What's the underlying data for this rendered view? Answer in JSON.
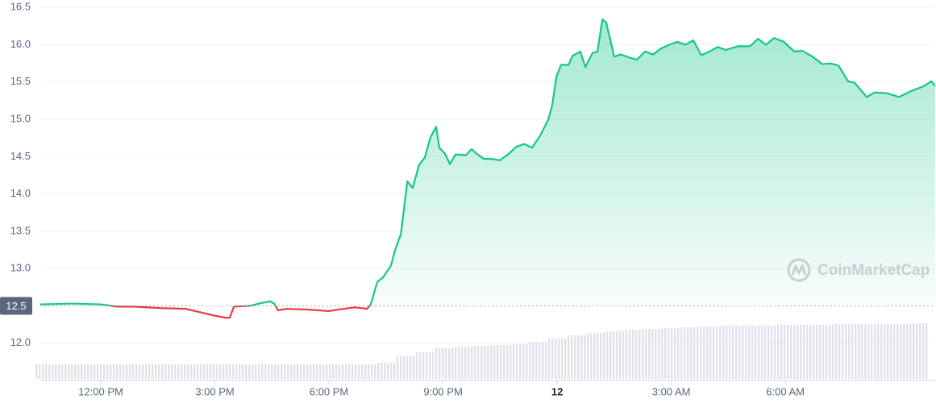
{
  "chart_data": {
    "type": "line",
    "watermark": "CoinMarketCap",
    "up_color": "#16c784",
    "down_color": "#ea3943",
    "grid": true,
    "xlim": [
      10.41,
      33.94
    ],
    "ylim": [
      11.5,
      16.6
    ],
    "y2lim": [
      0,
      100
    ],
    "xticks": [
      {
        "value": 12,
        "label": "12:00 PM"
      },
      {
        "value": 15,
        "label": "3:00 PM"
      },
      {
        "value": 18,
        "label": "6:00 PM"
      },
      {
        "value": 21,
        "label": "9:00 PM"
      },
      {
        "value": 24,
        "label": "12"
      },
      {
        "value": 27,
        "label": "3:00 AM"
      },
      {
        "value": 30,
        "label": "6:00 AM"
      }
    ],
    "yticks": [
      {
        "value": 12.0,
        "label": "12.0"
      },
      {
        "value": 13.0,
        "label": "13.0"
      },
      {
        "value": 13.5,
        "label": "13.5"
      },
      {
        "value": 14.0,
        "label": "14.0"
      },
      {
        "value": 14.5,
        "label": "14.5"
      },
      {
        "value": 15.0,
        "label": "15.0"
      },
      {
        "value": 15.5,
        "label": "15.5"
      },
      {
        "value": 16.0,
        "label": "16.0"
      },
      {
        "value": 16.5,
        "label": "16.5"
      }
    ],
    "baseline": {
      "value": 12.5,
      "label": "12.5"
    },
    "price": {
      "x": [
        10.41,
        11.26,
        12.0,
        12.42,
        12.85,
        13.59,
        14.23,
        14.65,
        14.97,
        15.29,
        15.39,
        15.5,
        15.92,
        16.24,
        16.45,
        16.56,
        16.66,
        16.88,
        17.41,
        18.0,
        18.25,
        18.68,
        19.0,
        19.1,
        19.27,
        19.42,
        19.63,
        19.74,
        19.89,
        20.06,
        20.2,
        20.37,
        20.52,
        20.67,
        20.82,
        20.9,
        21.05,
        21.18,
        21.33,
        21.6,
        21.75,
        21.86,
        22.07,
        22.28,
        22.49,
        22.71,
        22.92,
        23.13,
        23.34,
        23.55,
        23.77,
        23.87,
        23.98,
        24.1,
        24.3,
        24.4,
        24.61,
        24.74,
        24.93,
        25.06,
        25.19,
        25.29,
        25.5,
        25.67,
        25.89,
        26.1,
        26.31,
        26.52,
        26.73,
        26.95,
        27.16,
        27.37,
        27.58,
        27.79,
        28.01,
        28.22,
        28.43,
        28.75,
        29.07,
        29.28,
        29.49,
        29.7,
        29.96,
        30.23,
        30.44,
        30.72,
        30.97,
        31.19,
        31.4,
        31.65,
        31.82,
        31.99,
        32.14,
        32.35,
        32.67,
        32.99,
        33.31,
        33.62,
        33.84,
        33.94
      ],
      "values": [
        12.52,
        12.53,
        12.52,
        12.49,
        12.49,
        12.47,
        12.46,
        12.41,
        12.37,
        12.34,
        12.34,
        12.49,
        12.5,
        12.54,
        12.56,
        12.53,
        12.44,
        12.46,
        12.45,
        12.43,
        12.45,
        12.48,
        12.46,
        12.52,
        12.82,
        12.88,
        13.04,
        13.25,
        13.46,
        14.17,
        14.08,
        14.39,
        14.49,
        14.76,
        14.9,
        14.62,
        14.54,
        14.4,
        14.53,
        14.52,
        14.6,
        14.55,
        14.47,
        14.47,
        14.45,
        14.53,
        14.63,
        14.67,
        14.62,
        14.78,
        15.0,
        15.19,
        15.57,
        15.73,
        15.73,
        15.85,
        15.91,
        15.7,
        15.89,
        15.91,
        16.34,
        16.3,
        15.84,
        15.87,
        15.83,
        15.8,
        15.91,
        15.87,
        15.95,
        16.0,
        16.04,
        16.0,
        16.06,
        15.86,
        15.91,
        15.97,
        15.93,
        15.98,
        15.98,
        16.08,
        16.0,
        16.09,
        16.04,
        15.91,
        15.92,
        15.84,
        15.74,
        15.75,
        15.72,
        15.51,
        15.49,
        15.39,
        15.3,
        15.36,
        15.35,
        15.3,
        15.38,
        15.44,
        15.51,
        15.45
      ]
    },
    "volume": {
      "color": "#e3e6ea",
      "x": [
        10.5,
        11.0,
        11.5,
        12.0,
        12.5,
        13.0,
        13.5,
        14.0,
        14.5,
        15.0,
        15.5,
        16.0,
        16.5,
        17.0,
        17.5,
        18.0,
        18.5,
        19.0,
        19.5,
        20.0,
        20.5,
        21.0,
        21.5,
        22.0,
        22.5,
        23.0,
        23.5,
        24.0,
        24.5,
        25.0,
        25.5,
        26.0,
        26.5,
        27.0,
        27.5,
        28.0,
        28.5,
        29.0,
        29.5,
        30.0,
        30.5,
        31.0,
        31.5,
        32.0,
        32.5,
        33.0,
        33.5
      ],
      "values": [
        18,
        18,
        18,
        18,
        18,
        18,
        18,
        18,
        18,
        18,
        18,
        18,
        18,
        18,
        18,
        18,
        18,
        18,
        20,
        28,
        33,
        38,
        40,
        41,
        42,
        43,
        46,
        50,
        54,
        57,
        59,
        61,
        62,
        63,
        64,
        65,
        66,
        66,
        66,
        67,
        67,
        67,
        68,
        68,
        68,
        68,
        69
      ]
    }
  }
}
